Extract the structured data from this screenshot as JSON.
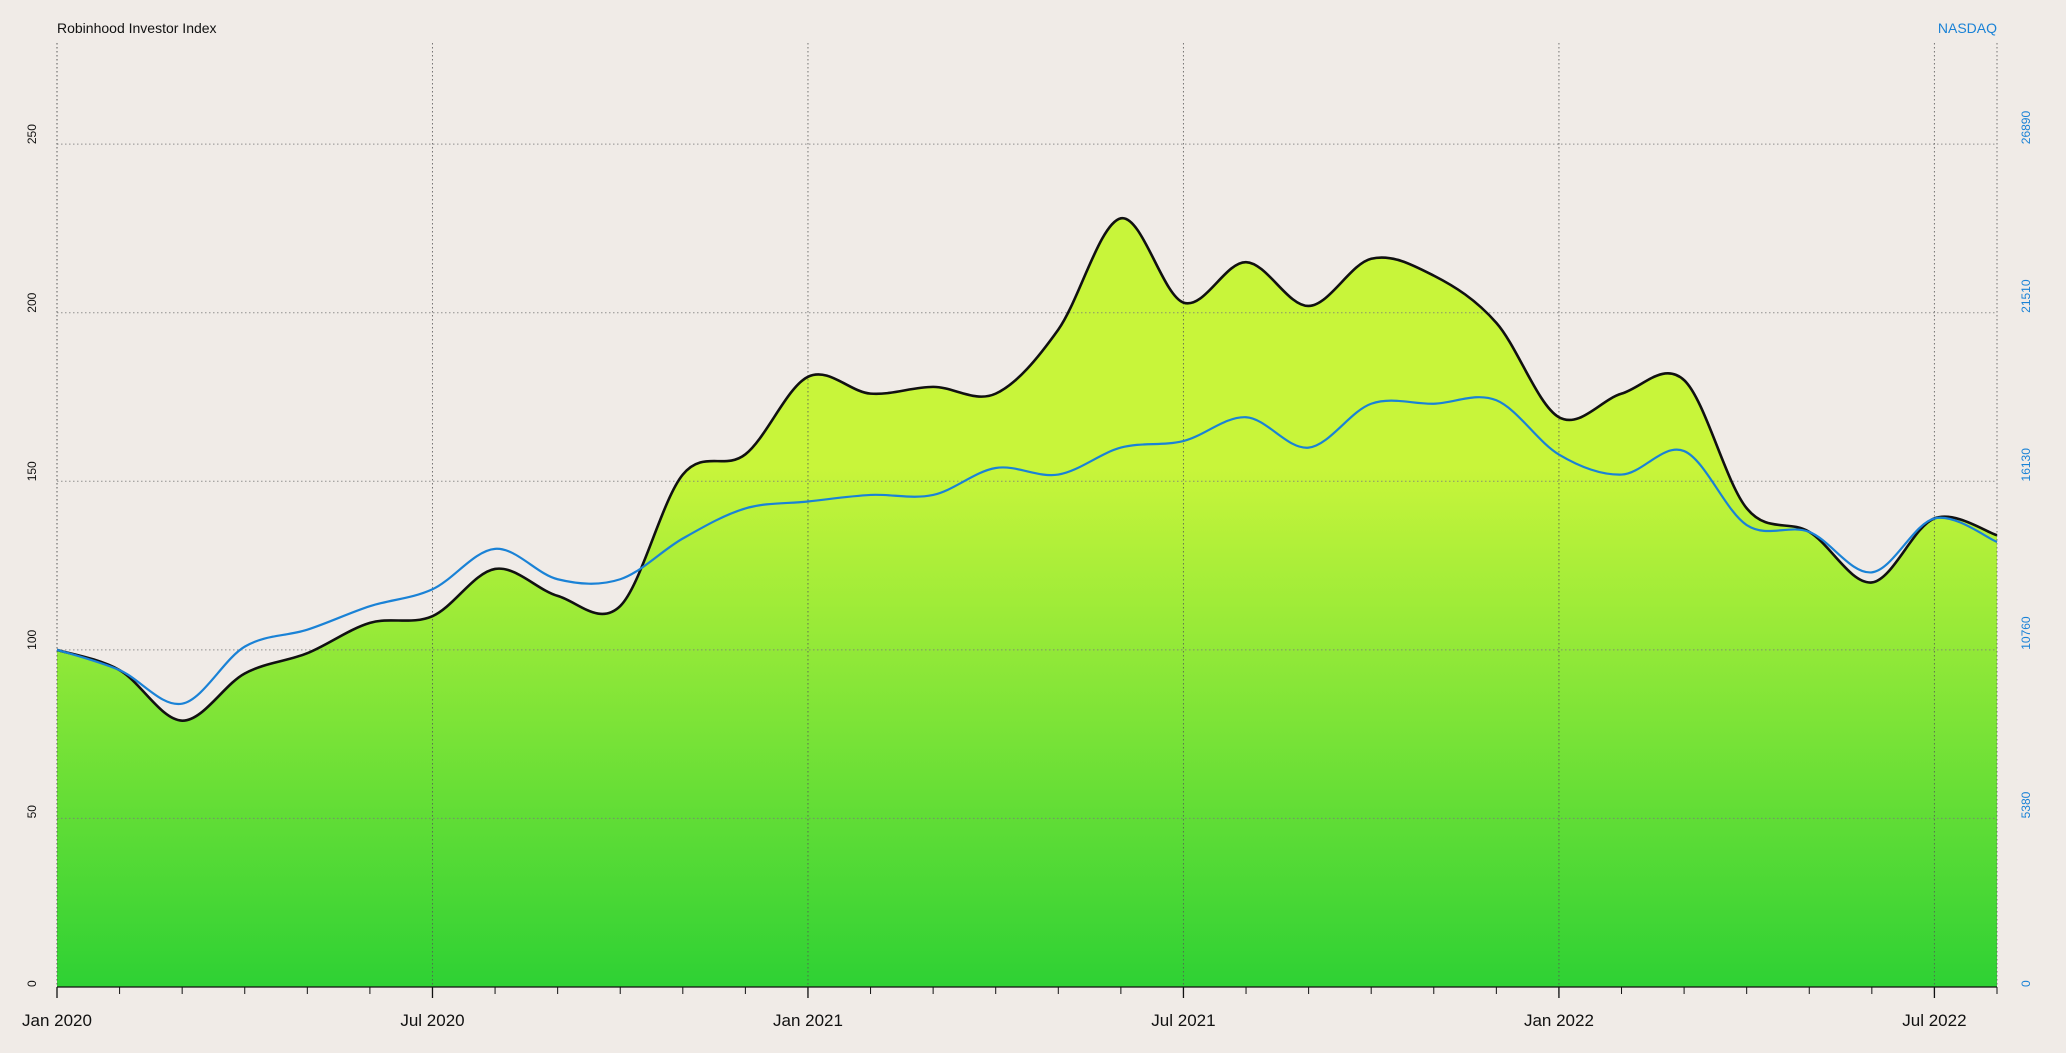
{
  "chart_data": {
    "type": "area",
    "x": [
      "2020-01",
      "2020-02",
      "2020-03",
      "2020-04",
      "2020-05",
      "2020-06",
      "2020-07",
      "2020-08",
      "2020-09",
      "2020-10",
      "2020-11",
      "2020-12",
      "2021-01",
      "2021-02",
      "2021-03",
      "2021-04",
      "2021-05",
      "2021-06",
      "2021-07",
      "2021-08",
      "2021-09",
      "2021-10",
      "2021-11",
      "2021-12",
      "2022-01",
      "2022-02",
      "2022-03",
      "2022-04",
      "2022-05",
      "2022-06",
      "2022-07",
      "2022-08"
    ],
    "xlim": [
      "2020-01",
      "2022-08"
    ],
    "xticks": [
      {
        "value": "2020-01",
        "label": "Jan 2020"
      },
      {
        "value": "2020-07",
        "label": "Jul 2020"
      },
      {
        "value": "2021-01",
        "label": "Jan 2021"
      },
      {
        "value": "2021-07",
        "label": "Jul 2021"
      },
      {
        "value": "2022-01",
        "label": "Jan 2022"
      },
      {
        "value": "2022-07",
        "label": "Jul 2022"
      }
    ],
    "ylim": [
      0,
      280
    ],
    "yticks": [
      0,
      50,
      100,
      150,
      200,
      250
    ],
    "y2lim": [
      0,
      30120
    ],
    "y2ticks": [
      0,
      5380,
      10760,
      16130,
      21510,
      26890
    ],
    "grid": true,
    "series": [
      {
        "name": "Robinhood Investor Index",
        "color": "#111111",
        "fill_top": "#c8f53a",
        "fill_bottom": "#2ed134",
        "values": [
          100,
          94,
          79,
          93,
          99,
          108,
          110,
          124,
          116,
          113,
          152,
          158,
          181,
          176,
          178,
          176,
          195,
          228,
          203,
          215,
          202,
          216,
          211,
          197,
          169,
          176,
          180,
          142,
          135,
          120,
          139,
          134
        ]
      },
      {
        "name": "NASDAQ",
        "color": "#1a82d6",
        "axis": "y2",
        "values": [
          10760,
          10110,
          9040,
          10860,
          11400,
          12150,
          12690,
          13980,
          13010,
          13010,
          14310,
          15270,
          15490,
          15700,
          15700,
          16560,
          16350,
          17210,
          17420,
          18180,
          17210,
          18610,
          18610,
          18720,
          16990,
          16350,
          17100,
          14740,
          14520,
          13230,
          14950,
          14200
        ]
      }
    ]
  }
}
